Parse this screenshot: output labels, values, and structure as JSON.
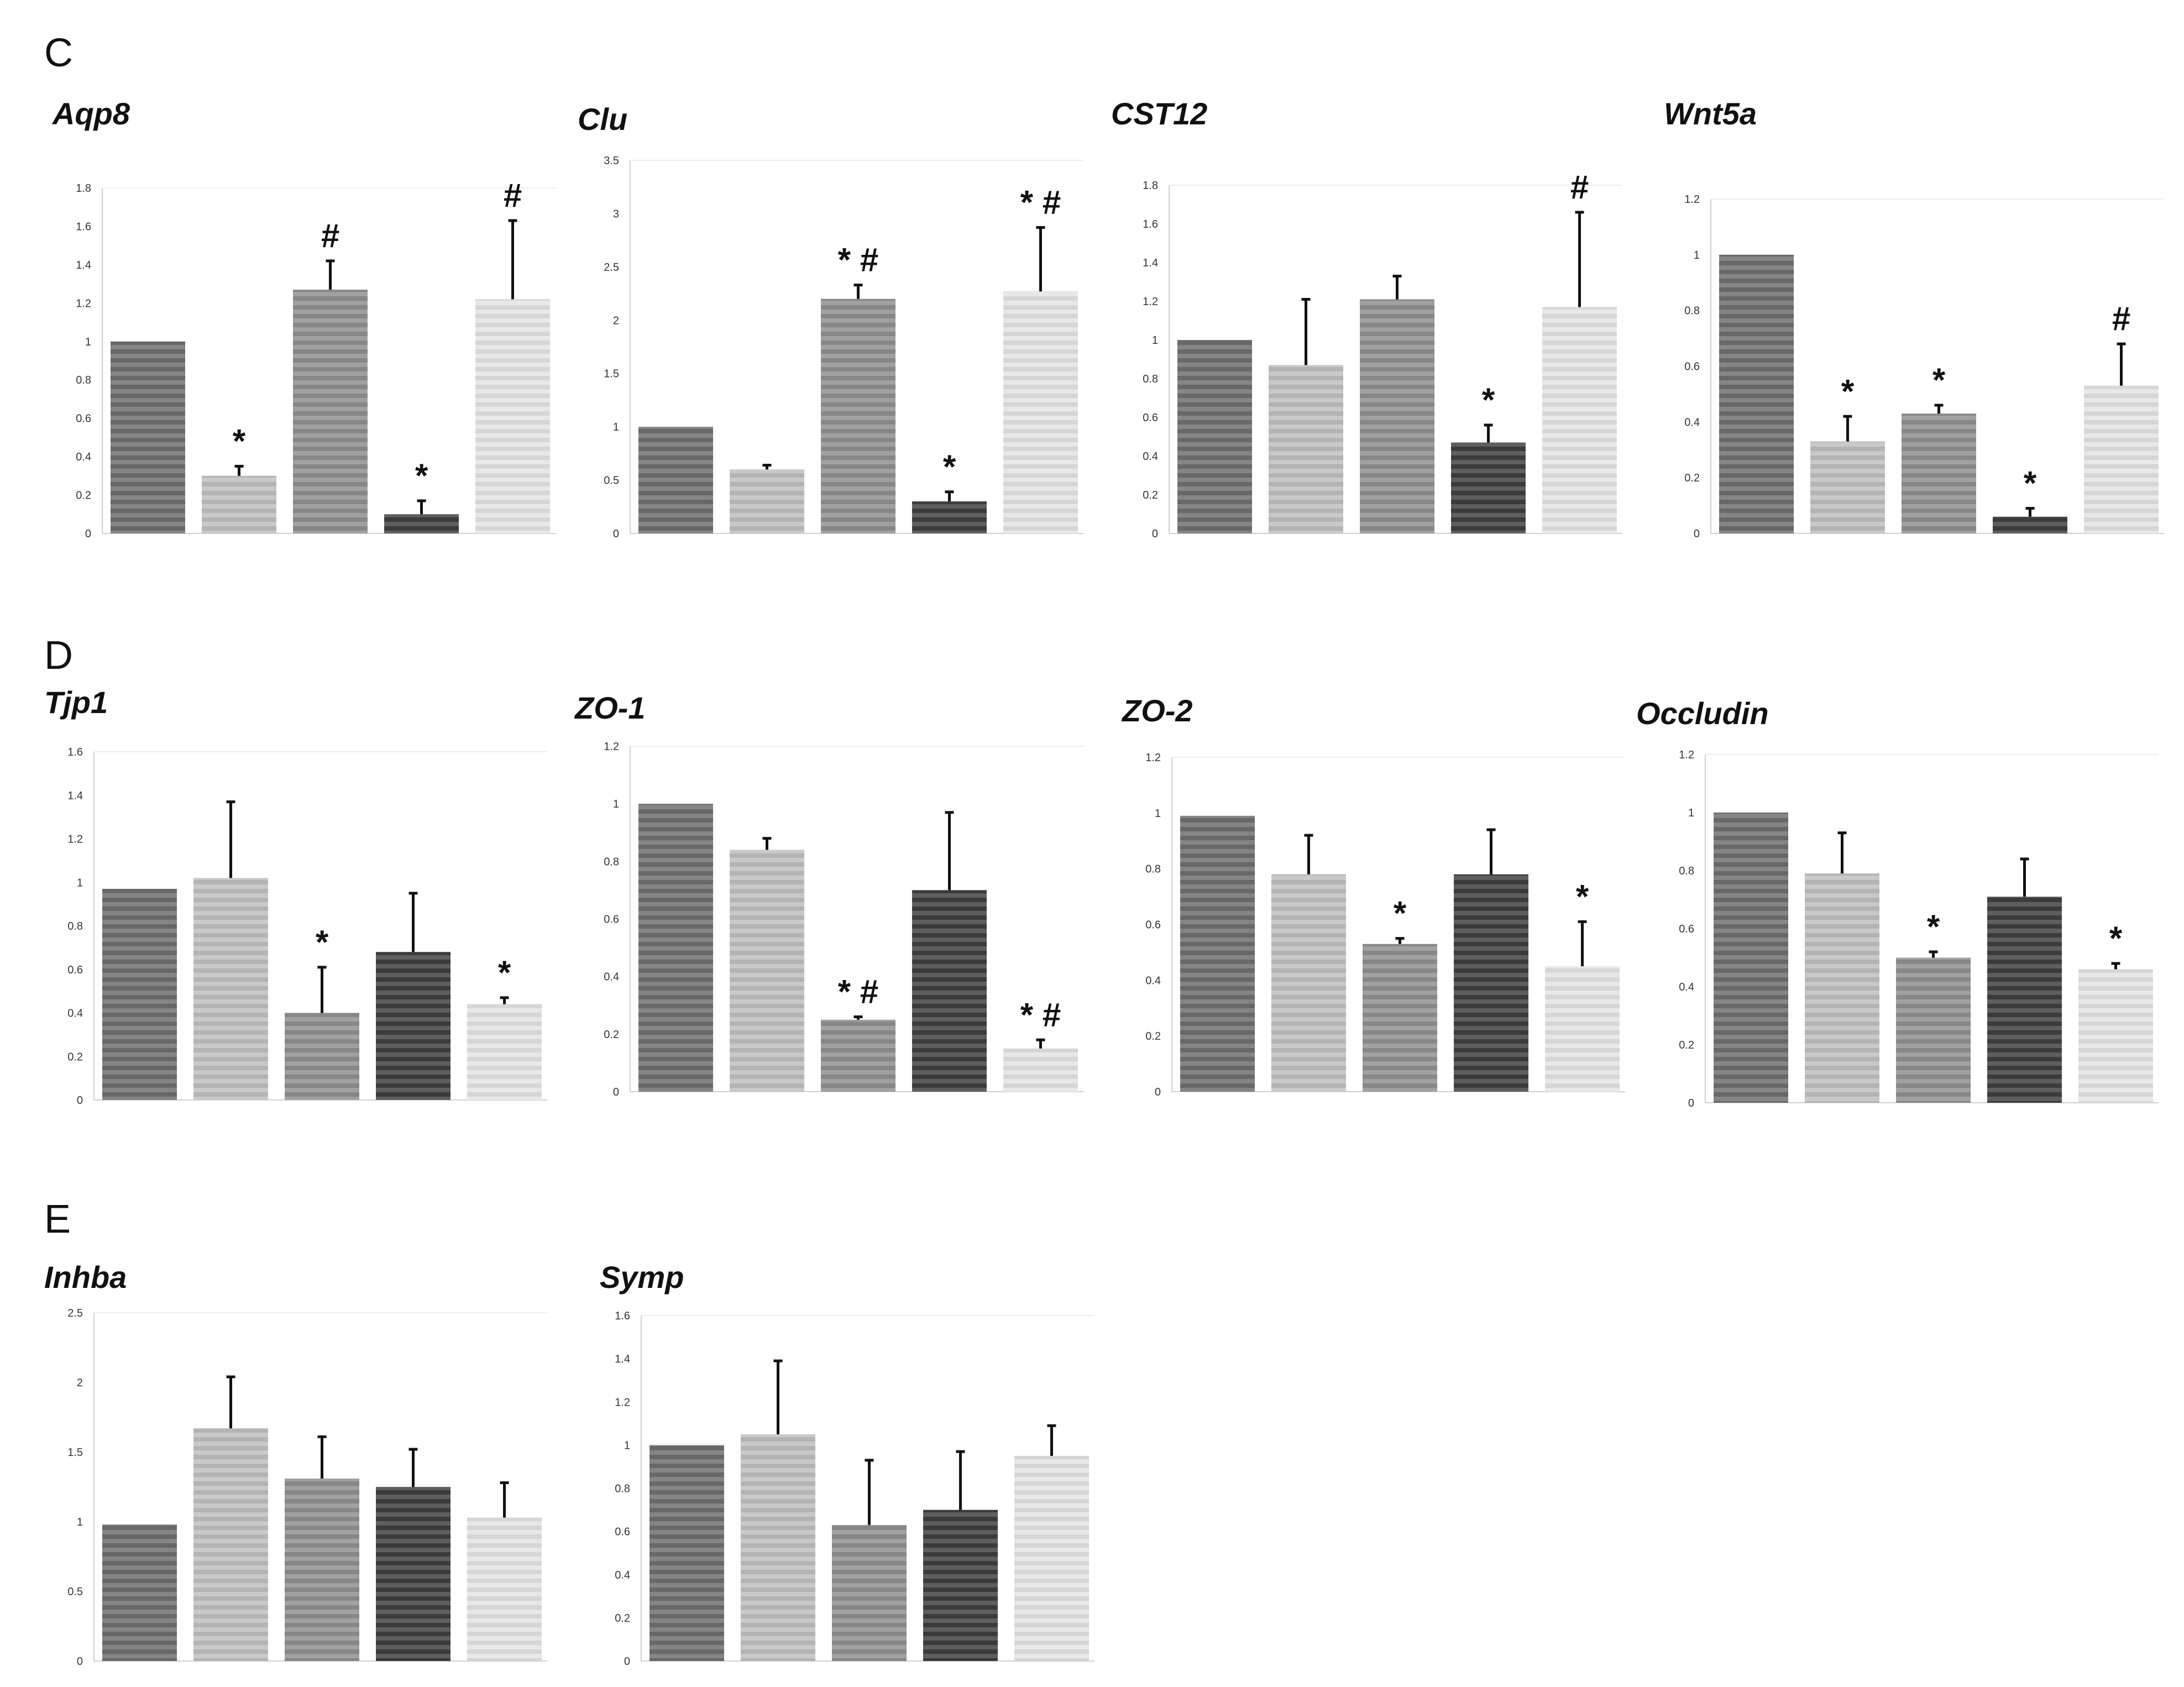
{
  "panels": [
    {
      "letter": "C"
    },
    {
      "letter": "D"
    },
    {
      "letter": "E"
    }
  ],
  "styles": {
    "bar_colors": [
      "#6e6e6e",
      "#bfbfbf",
      "#8f8f8f",
      "#3f3f3f",
      "#e3e3e3"
    ],
    "axis_color": "#d0d0d0"
  },
  "chart_data": [
    {
      "type": "bar",
      "panel": "C",
      "title": "Aqp8",
      "ylim": [
        0,
        1.8
      ],
      "ticks": [
        "0",
        "0.2",
        "0.4",
        "0.6",
        "0.8",
        "1",
        "1.2",
        "1.4",
        "1.6",
        "1.8"
      ],
      "values": [
        1,
        0.3,
        1.27,
        0.1,
        1.22
      ],
      "errors": [
        0,
        0.05,
        0.15,
        0.07,
        0.41
      ],
      "annotations": [
        "",
        "*",
        "#",
        "*",
        "#"
      ]
    },
    {
      "type": "bar",
      "panel": "C",
      "title": "Clu",
      "ylim": [
        0,
        3.5
      ],
      "ticks": [
        "0",
        "0.5",
        "1",
        "1.5",
        "2",
        "2.5",
        "3",
        "3.5"
      ],
      "values": [
        1,
        0.6,
        2.2,
        0.3,
        2.27
      ],
      "errors": [
        0,
        0.04,
        0.13,
        0.09,
        0.6
      ],
      "annotations": [
        "",
        "",
        "* #",
        "*",
        "* #"
      ]
    },
    {
      "type": "bar",
      "panel": "C",
      "title": "CST12",
      "ylim": [
        0,
        1.8
      ],
      "ticks": [
        "0",
        "0.2",
        "0.4",
        "0.6",
        "0.8",
        "1",
        "1.2",
        "1.4",
        "1.6",
        "1.8"
      ],
      "values": [
        1,
        0.87,
        1.21,
        0.47,
        1.17
      ],
      "errors": [
        0,
        0.34,
        0.12,
        0.09,
        0.49
      ],
      "annotations": [
        "",
        "",
        "",
        "*",
        "#"
      ]
    },
    {
      "type": "bar",
      "panel": "C",
      "title": "Wnt5a",
      "ylim": [
        0,
        1.2
      ],
      "ticks": [
        "0",
        "0.2",
        "0.4",
        "0.6",
        "0.8",
        "1",
        "1.2"
      ],
      "values": [
        1,
        0.33,
        0.43,
        0.06,
        0.53
      ],
      "errors": [
        0,
        0.09,
        0.03,
        0.03,
        0.15
      ],
      "annotations": [
        "",
        "*",
        "*",
        "*",
        "#"
      ]
    },
    {
      "type": "bar",
      "panel": "D",
      "title": "Tjp1",
      "ylim": [
        0,
        1.6
      ],
      "ticks": [
        "0",
        "0.2",
        "0.4",
        "0.6",
        "0.8",
        "1",
        "1.2",
        "1.4",
        "1.6"
      ],
      "values": [
        0.97,
        1.02,
        0.4,
        0.68,
        0.44
      ],
      "errors": [
        0,
        0.35,
        0.21,
        0.27,
        0.03
      ],
      "annotations": [
        "",
        "",
        "*",
        "",
        "*"
      ]
    },
    {
      "type": "bar",
      "panel": "D",
      "title": "ZO-1",
      "ylim": [
        0,
        1.2
      ],
      "ticks": [
        "0",
        "0.2",
        "0.4",
        "0.6",
        "0.8",
        "1",
        "1.2"
      ],
      "values": [
        1,
        0.84,
        0.25,
        0.7,
        0.15
      ],
      "errors": [
        0,
        0.04,
        0.01,
        0.27,
        0.03
      ],
      "annotations": [
        "",
        "",
        "* #",
        "",
        "* #"
      ]
    },
    {
      "type": "bar",
      "panel": "D",
      "title": "ZO-2",
      "ylim": [
        0,
        1.2
      ],
      "ticks": [
        "0",
        "0.2",
        "0.4",
        "0.6",
        "0.8",
        "1",
        "1.2"
      ],
      "values": [
        0.99,
        0.78,
        0.53,
        0.78,
        0.45
      ],
      "errors": [
        0,
        0.14,
        0.02,
        0.16,
        0.16
      ],
      "annotations": [
        "",
        "",
        "*",
        "",
        "*"
      ]
    },
    {
      "type": "bar",
      "panel": "D",
      "title": "Occludin",
      "ylim": [
        0,
        1.2
      ],
      "ticks": [
        "0",
        "0.2",
        "0.4",
        "0.6",
        "0.8",
        "1",
        "1.2"
      ],
      "values": [
        1,
        0.79,
        0.5,
        0.71,
        0.46
      ],
      "errors": [
        0,
        0.14,
        0.02,
        0.13,
        0.02
      ],
      "annotations": [
        "",
        "",
        "*",
        "",
        "*"
      ]
    },
    {
      "type": "bar",
      "panel": "E",
      "title": "Inhba",
      "ylim": [
        0,
        2.5
      ],
      "ticks": [
        "0",
        "0.5",
        "1",
        "1.5",
        "2",
        "2.5"
      ],
      "values": [
        0.98,
        1.67,
        1.31,
        1.25,
        1.03
      ],
      "errors": [
        0,
        0.37,
        0.3,
        0.27,
        0.25
      ],
      "annotations": [
        "",
        "",
        "",
        "",
        ""
      ]
    },
    {
      "type": "bar",
      "panel": "E",
      "title": "Symp",
      "ylim": [
        0,
        1.6
      ],
      "ticks": [
        "0",
        "0.2",
        "0.4",
        "0.6",
        "0.8",
        "1",
        "1.2",
        "1.4",
        "1.6"
      ],
      "values": [
        1,
        1.05,
        0.63,
        0.7,
        0.95
      ],
      "errors": [
        0,
        0.34,
        0.3,
        0.27,
        0.14
      ],
      "annotations": [
        "",
        "",
        "",
        "",
        ""
      ]
    }
  ]
}
